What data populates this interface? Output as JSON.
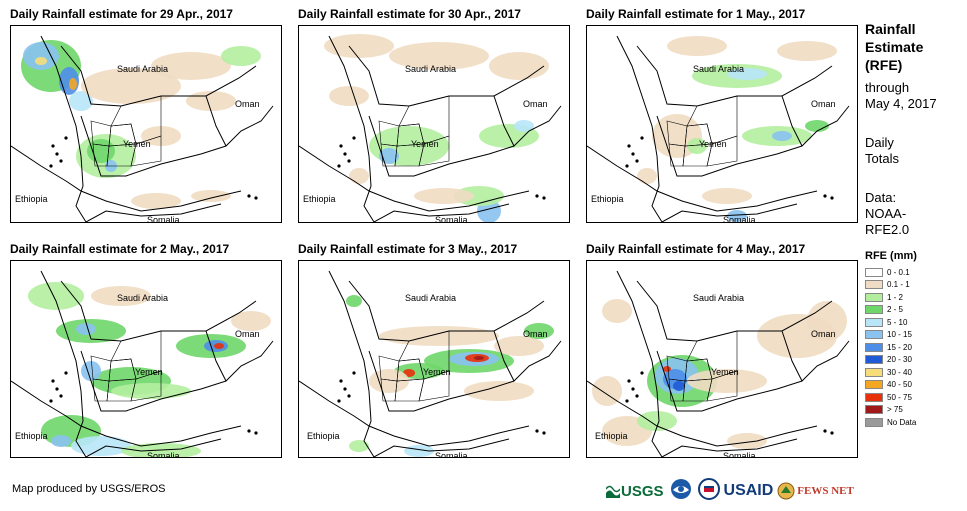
{
  "panels": [
    {
      "title": "Daily Rainfall estimate for 29 Apr., 2017"
    },
    {
      "title": "Daily Rainfall estimate for 30 Apr., 2017"
    },
    {
      "title": "Daily Rainfall estimate for 1 May., 2017"
    },
    {
      "title": "Daily Rainfall estimate for 2 May., 2017"
    },
    {
      "title": "Daily Rainfall estimate for 3 May., 2017"
    },
    {
      "title": "Daily Rainfall estimate for 4 May., 2017"
    }
  ],
  "country_labels": {
    "saudi_arabia": "Saudi Arabia",
    "oman": "Oman",
    "yemen": "Yemen",
    "ethiopia": "Ethiopia",
    "somalia": "Somalia"
  },
  "sidebar": {
    "title_line1": "Rainfall",
    "title_line2": "Estimate",
    "title_line3": "(RFE)",
    "through": "through",
    "date": "May 4, 2017",
    "daily": "Daily",
    "totals": "Totals",
    "data_label": "Data:",
    "data_line2": "NOAA-",
    "data_line3": "RFE2.0"
  },
  "legend": {
    "title": "RFE (mm)",
    "items": [
      {
        "label": "0 - 0.1",
        "color": "#ffffff"
      },
      {
        "label": "0.1 - 1",
        "color": "#efdcc2"
      },
      {
        "label": "1 - 2",
        "color": "#b3ee9e"
      },
      {
        "label": "2 - 5",
        "color": "#6fd66a"
      },
      {
        "label": "5 - 10",
        "color": "#b8e5f8"
      },
      {
        "label": "10 - 15",
        "color": "#8ac2f0"
      },
      {
        "label": "15 - 20",
        "color": "#4f8ee8"
      },
      {
        "label": "20 - 30",
        "color": "#1f5bd6"
      },
      {
        "label": "30 - 40",
        "color": "#f7dd7a"
      },
      {
        "label": "40 - 50",
        "color": "#f5a623"
      },
      {
        "label": "50 - 75",
        "color": "#e8300a"
      },
      {
        "label": "> 75",
        "color": "#a01818"
      },
      {
        "label": "No Data",
        "color": "#9a9a9a"
      }
    ]
  },
  "footer": {
    "credit": "Map produced by USGS/EROS",
    "logos": [
      "USGS",
      "NOAA",
      "USAID",
      "FEWS NET"
    ]
  }
}
